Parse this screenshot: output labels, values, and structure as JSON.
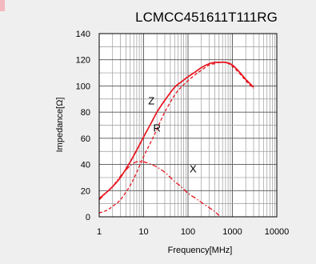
{
  "chart_data": {
    "type": "line",
    "title": "LCMCC451611T111RG",
    "xlabel": "Frequency[MHz]",
    "ylabel": "Impedance[Ω]",
    "x_scale": "log",
    "xlim": [
      1,
      10000
    ],
    "ylim": [
      0,
      140
    ],
    "x_ticks": [
      "1",
      "10",
      "100",
      "1000",
      "10000"
    ],
    "y_ticks": [
      "0",
      "20",
      "40",
      "60",
      "80",
      "100",
      "120",
      "140"
    ],
    "grid": true,
    "colors": {
      "series": "#e8141e",
      "background": "#efefef",
      "plot": "#ffffff"
    },
    "series": [
      {
        "name": "Z",
        "style": "solid",
        "x": [
          1,
          1.5,
          2,
          3,
          5,
          7,
          10,
          15,
          20,
          30,
          50,
          70,
          100,
          150,
          200,
          300,
          400,
          500,
          700,
          1000,
          1500,
          2000,
          3000
        ],
        "y": [
          14,
          19,
          23,
          30,
          42,
          51,
          61,
          72,
          80,
          89,
          99,
          103,
          107,
          111,
          114,
          117,
          118,
          118,
          118,
          116,
          110,
          105,
          99
        ]
      },
      {
        "name": "R",
        "style": "dashed",
        "x": [
          1,
          1.5,
          2,
          3,
          5,
          7,
          10,
          15,
          20,
          30,
          50,
          70,
          100,
          150,
          200,
          300,
          400,
          500,
          700,
          1000,
          1500,
          2000,
          3000
        ],
        "y": [
          3,
          5,
          8,
          13,
          24,
          34,
          46,
          58,
          67,
          80,
          93,
          99,
          104,
          109,
          112,
          116,
          117,
          118,
          118,
          115,
          109,
          104,
          98
        ]
      },
      {
        "name": "X",
        "style": "dashdot",
        "x": [
          1,
          1.5,
          2,
          3,
          5,
          7,
          10,
          15,
          20,
          30,
          50,
          70,
          100,
          150,
          200,
          300,
          400,
          500
        ],
        "y": [
          13,
          19,
          23,
          31,
          39,
          42,
          42,
          40,
          38,
          34,
          27,
          23,
          18,
          14,
          11,
          7,
          4,
          1
        ]
      }
    ],
    "annotations": [
      {
        "text": "Z",
        "x": 15,
        "y": 86
      },
      {
        "text": "R",
        "x": 20,
        "y": 65
      },
      {
        "text": "X",
        "x": 130,
        "y": 34
      }
    ]
  }
}
